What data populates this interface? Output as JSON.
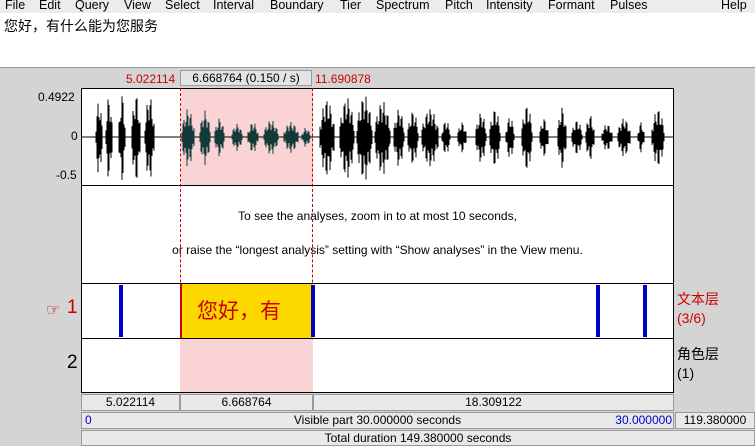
{
  "menu": [
    "File",
    "Edit",
    "Query",
    "View",
    "Select",
    "Interval",
    "Boundary",
    "Tier",
    "Spectrum",
    "Pitch",
    "Intensity",
    "Formant",
    "Pulses",
    "Help"
  ],
  "text_pane": "您好，有什么能为您服务",
  "selection": {
    "start": "5.022114",
    "duration": "6.668764 (0.150 / s)",
    "end": "11.690878"
  },
  "waveform": {
    "y_top": "0.4922",
    "y_mid": "0",
    "y_bottom": "-0.5"
  },
  "analysis_message": {
    "line1": "To see the analyses, zoom in to at most 10 seconds,",
    "line2": "or raise the “longest analysis” setting with “Show analyses” in the View menu."
  },
  "tiers": [
    {
      "number": "1",
      "pointer": "☞",
      "name": "文本层",
      "count": "(3/6)",
      "interval_text": "您好，有"
    },
    {
      "number": "2",
      "name": "角色层",
      "count": "(1)"
    }
  ],
  "segments": [
    "5.022114",
    "6.668764",
    "18.309122"
  ],
  "visible": {
    "start": "0",
    "label": "Visible part 30.000000 seconds",
    "end": "30.000000",
    "right": "119.380000"
  },
  "total": "Total duration 149.380000 seconds",
  "colors": {
    "selection_fill": "#fad4d4",
    "selected_interval": "#fcd800",
    "boundary": "#0000cc",
    "red_text": "#cc0000"
  }
}
